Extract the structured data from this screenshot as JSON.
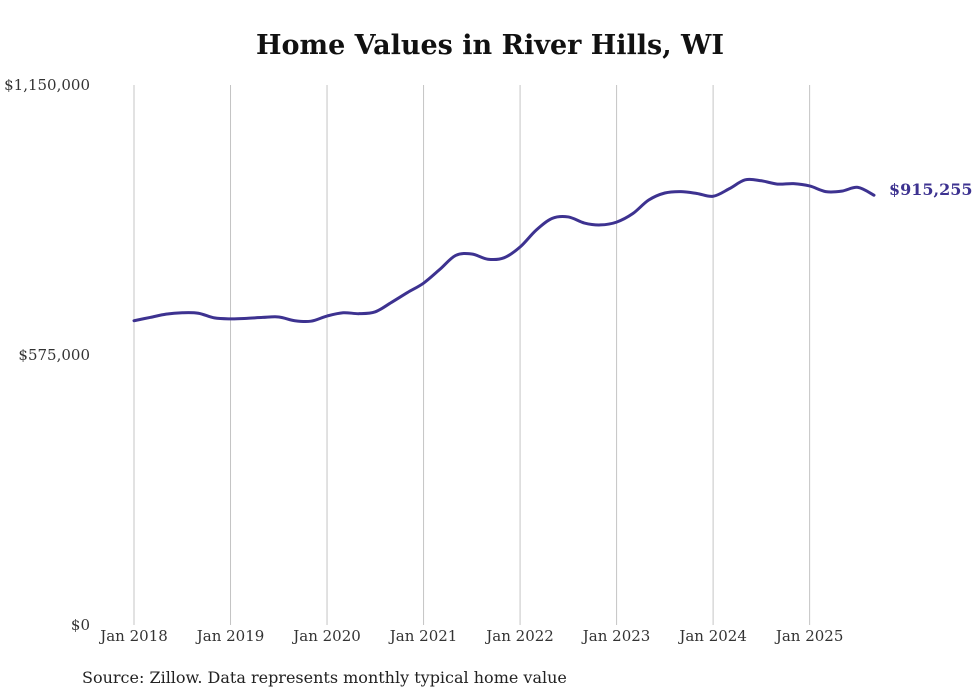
{
  "chart_data": {
    "type": "line",
    "title": "Home Values in River Hills, WI",
    "source": "Source: Zillow. Data represents monthly typical home value",
    "xlabel": "",
    "ylabel": "",
    "ylim": [
      0,
      1150000
    ],
    "y_ticks": [
      {
        "value": 0,
        "label": "$0"
      },
      {
        "value": 575000,
        "label": "$575,000"
      },
      {
        "value": 1150000,
        "label": "$1,150,000"
      }
    ],
    "x_ticks": [
      {
        "value": 2018.0,
        "label": "Jan 2018"
      },
      {
        "value": 2019.0,
        "label": "Jan 2019"
      },
      {
        "value": 2020.0,
        "label": "Jan 2020"
      },
      {
        "value": 2021.0,
        "label": "Jan 2021"
      },
      {
        "value": 2022.0,
        "label": "Jan 2022"
      },
      {
        "value": 2023.0,
        "label": "Jan 2023"
      },
      {
        "value": 2024.0,
        "label": "Jan 2024"
      },
      {
        "value": 2025.0,
        "label": "Jan 2025"
      }
    ],
    "xlim": [
      2018.0,
      2025.667
    ],
    "grid": "vertical",
    "series": [
      {
        "name": "Typical home value",
        "color": "#3d3290",
        "end_label": "$915,255",
        "x": [
          2018.0,
          2018.167,
          2018.333,
          2018.5,
          2018.667,
          2018.833,
          2019.0,
          2019.167,
          2019.333,
          2019.5,
          2019.667,
          2019.833,
          2020.0,
          2020.167,
          2020.333,
          2020.5,
          2020.667,
          2020.833,
          2021.0,
          2021.167,
          2021.333,
          2021.5,
          2021.667,
          2021.833,
          2022.0,
          2022.167,
          2022.333,
          2022.5,
          2022.667,
          2022.833,
          2023.0,
          2023.167,
          2023.333,
          2023.5,
          2023.667,
          2023.833,
          2024.0,
          2024.167,
          2024.333,
          2024.5,
          2024.667,
          2024.833,
          2025.0,
          2025.167,
          2025.333,
          2025.5,
          2025.667
        ],
        "values": [
          648000,
          655000,
          662000,
          665000,
          664000,
          654000,
          652000,
          653000,
          655000,
          656000,
          648000,
          647000,
          658000,
          665000,
          663000,
          667000,
          687000,
          708000,
          728000,
          757000,
          787000,
          790000,
          779000,
          782000,
          805000,
          841000,
          866000,
          869000,
          856000,
          852000,
          858000,
          876000,
          905000,
          920000,
          923000,
          919000,
          913000,
          929000,
          948000,
          946000,
          939000,
          940000,
          935000,
          923000,
          924000,
          932000,
          915255
        ]
      }
    ]
  }
}
